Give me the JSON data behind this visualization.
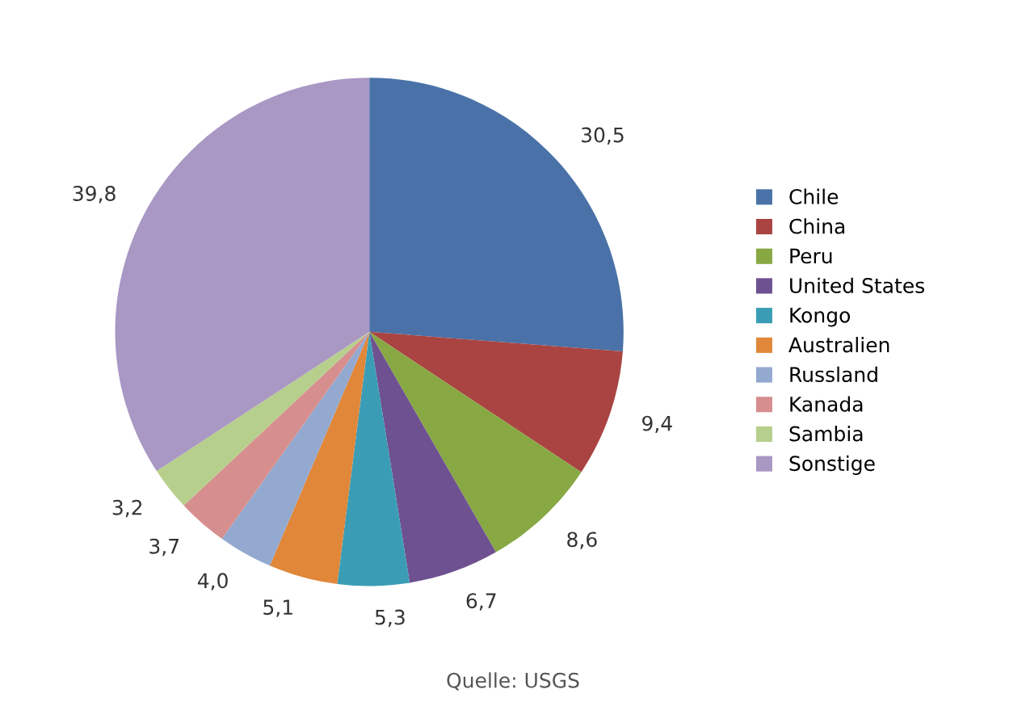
{
  "chart_data": {
    "type": "pie",
    "categories": [
      "Chile",
      "China",
      "Peru",
      "United States",
      "Kongo",
      "Australien",
      "Russland",
      "Kanada",
      "Sambia",
      "Sonstige"
    ],
    "values": [
      30.5,
      9.4,
      8.6,
      6.7,
      5.3,
      5.1,
      4.0,
      3.7,
      3.2,
      39.8
    ],
    "value_labels": [
      "30,5",
      "9,4",
      "8,6",
      "6,7",
      "5,3",
      "5,1",
      "4,0",
      "3,7",
      "3,2",
      "39,8"
    ],
    "colors": [
      "#4a72a8",
      "#a94442",
      "#88a844",
      "#6e5190",
      "#3a9db5",
      "#e0873a",
      "#93a9d0",
      "#d68f8e",
      "#b7cf8d",
      "#a997c4"
    ],
    "legend": "right",
    "annotations": [
      "Quelle: USGS"
    ]
  }
}
